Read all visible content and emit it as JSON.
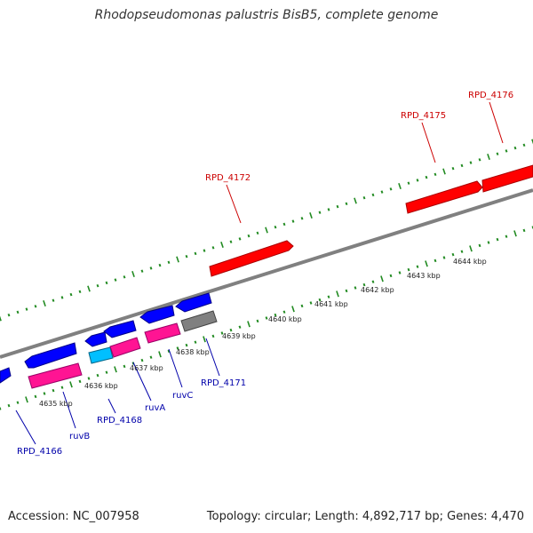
{
  "header": {
    "title": "Rhodopseudomonas palustris BisB5, complete genome"
  },
  "footer": {
    "accession": "Accession: NC_007958",
    "info": "Topology: circular; Length: 4,892,717 bp; Genes: 4,470"
  },
  "colors": {
    "forward_cds": "#ff0000",
    "reverse_cds": "#0000ff",
    "rna": "#ff1493",
    "other_feature": "#00bfff",
    "pseudo": "#808080",
    "backbone": "#808080",
    "tick": "#228b22",
    "forward_label": "#cc0000",
    "reverse_label": "#0000aa"
  },
  "scale_labels": [
    "4635 kbp",
    "4636 kbp",
    "4637 kbp",
    "4638 kbp",
    "4639 kbp",
    "4640 kbp",
    "4641 kbp",
    "4642 kbp",
    "4643 kbp",
    "4644 kbp"
  ],
  "forward_genes": [
    {
      "label": "RPD_4172"
    },
    {
      "label": "RPD_4175"
    },
    {
      "label": "RPD_4176"
    }
  ],
  "reverse_genes": [
    {
      "label": "RPD_4166"
    },
    {
      "label": "ruvB"
    },
    {
      "label": "RPD_4168"
    },
    {
      "label": "ruvA"
    },
    {
      "label": "ruvC"
    },
    {
      "label": "RPD_4171"
    }
  ]
}
